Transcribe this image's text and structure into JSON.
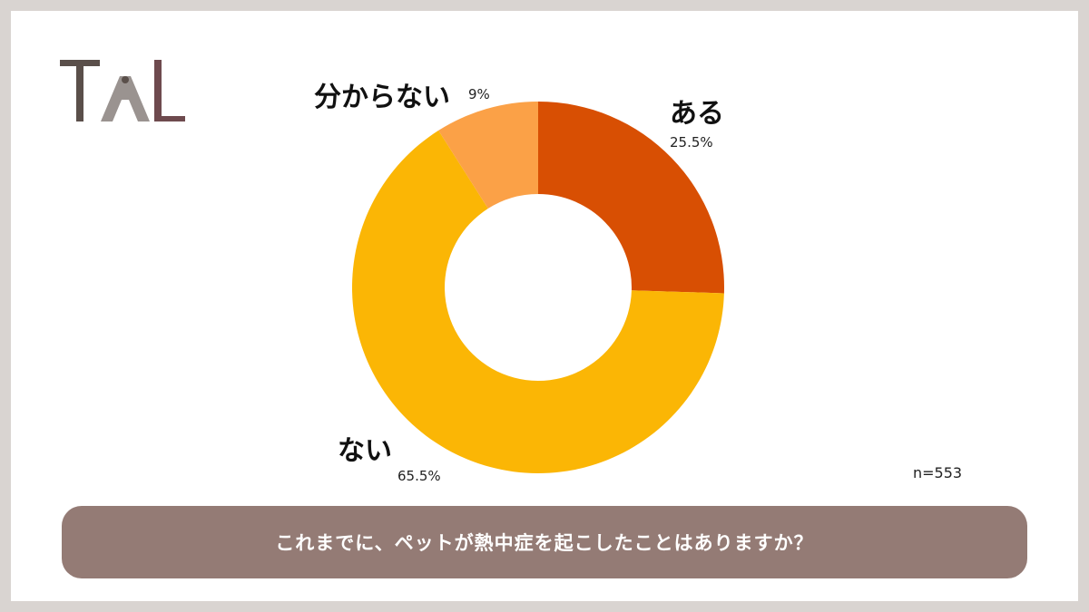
{
  "logo": {
    "text": "TAL"
  },
  "chart_data": {
    "type": "pie",
    "donut": true,
    "title": "これまでに、ペットが熱中症を起こしたことはありますか？",
    "slices": [
      {
        "label": "ある",
        "value": 25.5,
        "value_label": "25.5%",
        "color": "#d84f03"
      },
      {
        "label": "ない",
        "value": 65.5,
        "value_label": "65.5%",
        "color": "#fbb605"
      },
      {
        "label": "分からない",
        "value": 9,
        "value_label": "9%",
        "color": "#fba147"
      }
    ],
    "sample_size": "n=553"
  }
}
